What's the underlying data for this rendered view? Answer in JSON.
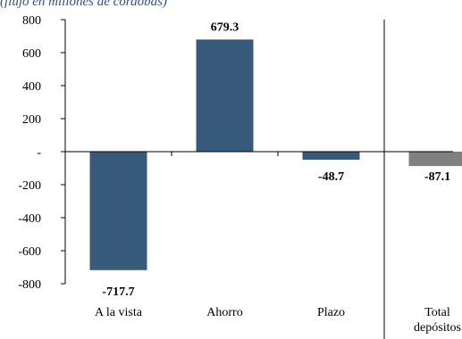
{
  "subtitle": "(flujo en millones de córdobas)",
  "chart_data": {
    "type": "bar",
    "title": "",
    "subtitle": "(flujo en millones de córdobas)",
    "xlabel": "",
    "ylabel": "",
    "categories": [
      "A la vista",
      "Ahorro",
      "Plazo",
      "Total depósitos"
    ],
    "category_lines": [
      [
        "A la vista"
      ],
      [
        "Ahorro"
      ],
      [
        "Plazo"
      ],
      [
        "Total",
        "depósitos"
      ]
    ],
    "values": [
      -717.7,
      679.3,
      -48.7,
      -87.1
    ],
    "data_labels": [
      "-717.7",
      "679.3",
      "-48.7",
      "-87.1"
    ],
    "bar_colors": [
      "#385a7a",
      "#385a7a",
      "#385a7a",
      "#808080"
    ],
    "ylim": [
      -800,
      800
    ],
    "yticks": [
      800,
      600,
      400,
      200,
      0,
      -200,
      -400,
      -600,
      -800
    ],
    "ytick_labels": [
      "800",
      "600",
      "400",
      "200",
      "-",
      "-200",
      "-400",
      "-600",
      "-800"
    ],
    "separator_before_category": 3,
    "grid": false,
    "legend": "none"
  }
}
